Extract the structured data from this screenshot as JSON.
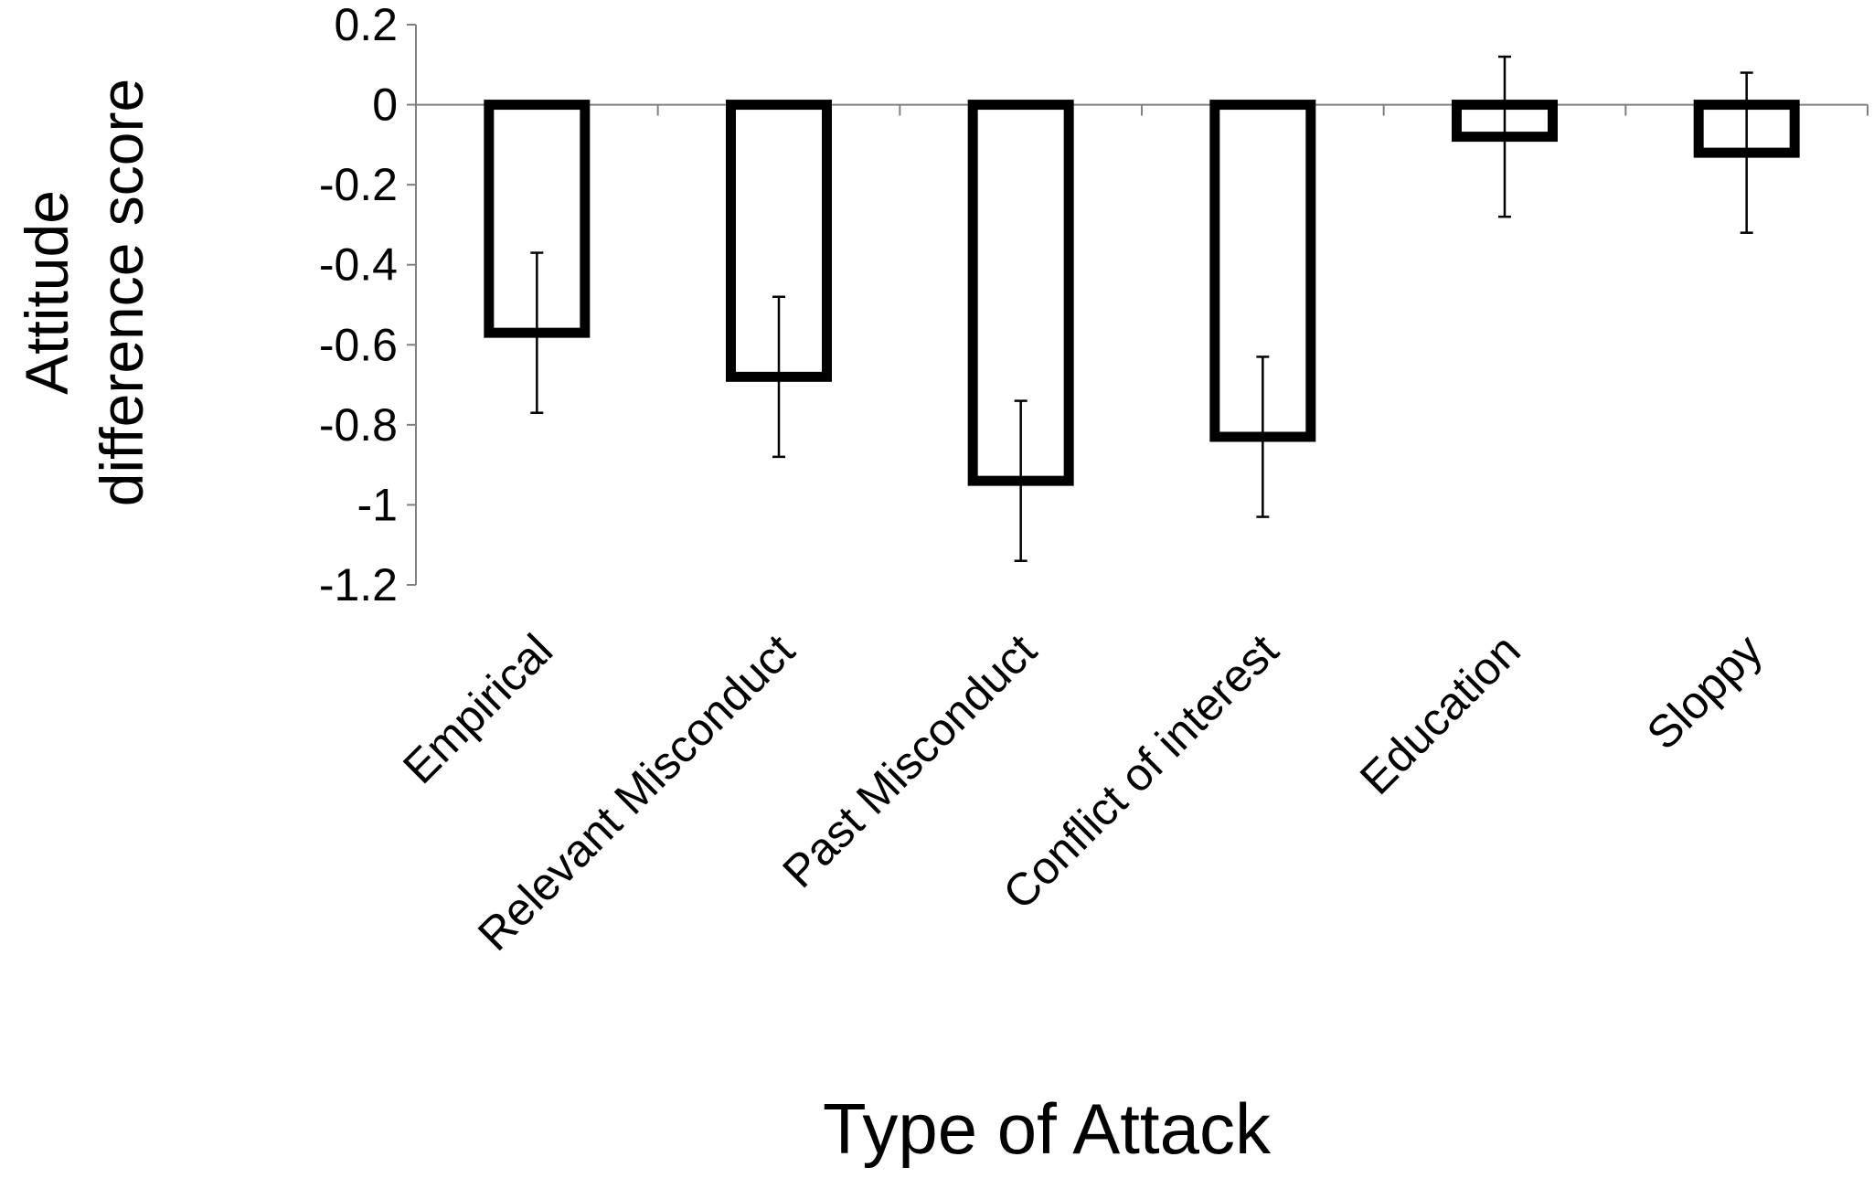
{
  "chart_data": {
    "type": "bar",
    "title": "",
    "xlabel": "Type of Attack",
    "ylabel_lines": [
      "Attitude",
      "difference score"
    ],
    "categories": [
      "Empirical",
      "Relevant Misconduct",
      "Past Misconduct",
      "Conflict of interest",
      "Education",
      "Sloppy"
    ],
    "values": [
      -0.57,
      -0.68,
      -0.94,
      -0.83,
      -0.08,
      -0.12
    ],
    "error_bars": [
      0.2,
      0.2,
      0.2,
      0.2,
      0.2,
      0.2
    ],
    "ylim": [
      -1.2,
      0.2
    ],
    "yticks": [
      0.2,
      0,
      -0.2,
      -0.4,
      -0.6,
      -0.8,
      -1,
      -1.2
    ],
    "ytick_labels": [
      "0.2",
      "0",
      "-0.2",
      "-0.4",
      "-0.6",
      "-0.8",
      "-1",
      "-1.2"
    ],
    "grid": false,
    "legend": "none",
    "colors": {
      "bar_fill": "#ffffff",
      "bar_stroke": "#000000",
      "axis": "#808080",
      "error": "#000000"
    }
  }
}
